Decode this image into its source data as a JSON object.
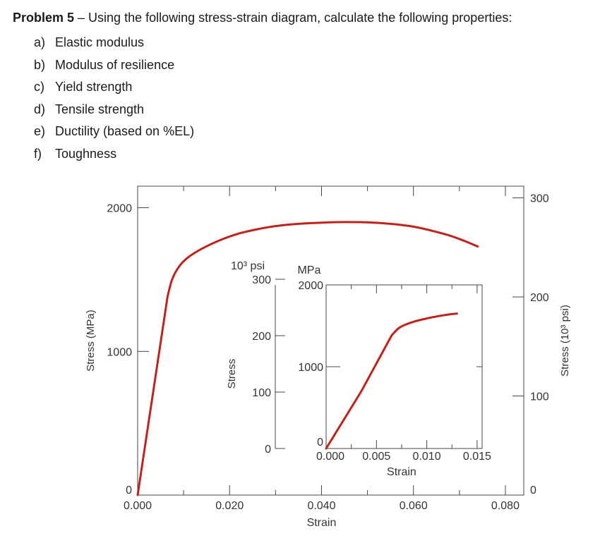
{
  "problem": {
    "label": "Problem 5",
    "separator": " – ",
    "prompt": "Using the following stress-strain diagram, calculate the following properties:",
    "items": [
      {
        "letter": "a)",
        "text": "Elastic modulus"
      },
      {
        "letter": "b)",
        "text": "Modulus of resilience"
      },
      {
        "letter": "c)",
        "text": "Yield strength"
      },
      {
        "letter": "d)",
        "text": "Tensile strength"
      },
      {
        "letter": "e)",
        "text": "Ductility (based on %EL)"
      },
      {
        "letter": "f)",
        "text": "Toughness"
      }
    ]
  },
  "chart_data": [
    {
      "type": "line",
      "title": "",
      "xlabel": "Strain",
      "ylabel": "Stress (MPa)",
      "ylabel_right": "Stress (10³ psi)",
      "xlim": [
        0,
        0.084
      ],
      "ylim": [
        0,
        2150
      ],
      "ylim_right_ksi": [
        0,
        311.8
      ],
      "x_ticks": [
        "0.000",
        "0.020",
        "0.040",
        "0.060",
        "0.080"
      ],
      "x_tick_values": [
        0,
        0.02,
        0.04,
        0.06,
        0.08
      ],
      "y_ticks": [
        "0",
        "1000",
        "2000"
      ],
      "y_tick_values": [
        0,
        1000,
        2000
      ],
      "y_ticks_right": [
        "0",
        "100",
        "200",
        "300"
      ],
      "y_tick_values_right": [
        0,
        100,
        200,
        300
      ],
      "grid": false,
      "line_color": "#c0221b",
      "series": [
        {
          "name": "",
          "x": [
            0,
            0.0065,
            0.0075,
            0.009,
            0.011,
            0.014,
            0.018,
            0.022,
            0.026,
            0.03,
            0.035,
            0.04,
            0.045,
            0.05,
            0.055,
            0.06,
            0.064,
            0.068,
            0.071,
            0.074
          ],
          "y": [
            0,
            1380,
            1500,
            1590,
            1655,
            1715,
            1775,
            1820,
            1850,
            1872,
            1888,
            1896,
            1900,
            1898,
            1888,
            1868,
            1840,
            1805,
            1770,
            1730
          ]
        }
      ]
    },
    {
      "type": "line",
      "title": "",
      "xlabel": "Strain",
      "ylabel": "Stress",
      "unit_left": "10³ psi",
      "unit_right": "MPa",
      "xlim": [
        0,
        0.0155
      ],
      "ylim": [
        0,
        2000
      ],
      "ylim_ksi": [
        0,
        290
      ],
      "x_ticks": [
        "0.000",
        "0.005",
        "0.010",
        "0.015"
      ],
      "x_tick_values": [
        0,
        0.005,
        0.01,
        0.015
      ],
      "y_ticks": [
        "0",
        "1000",
        "2000"
      ],
      "y_tick_values": [
        0,
        1000,
        2000
      ],
      "y_ticks_ksi": [
        "0",
        "100",
        "200",
        "300"
      ],
      "y_tick_values_ksi": [
        0,
        100,
        200,
        300
      ],
      "grid": false,
      "line_color": "#c0221b",
      "series": [
        {
          "name": "",
          "x": [
            0,
            0.0035,
            0.0065,
            0.0072,
            0.008,
            0.009,
            0.01,
            0.011,
            0.012,
            0.013
          ],
          "y": [
            0,
            700,
            1380,
            1470,
            1520,
            1560,
            1590,
            1615,
            1635,
            1650
          ]
        }
      ]
    }
  ]
}
